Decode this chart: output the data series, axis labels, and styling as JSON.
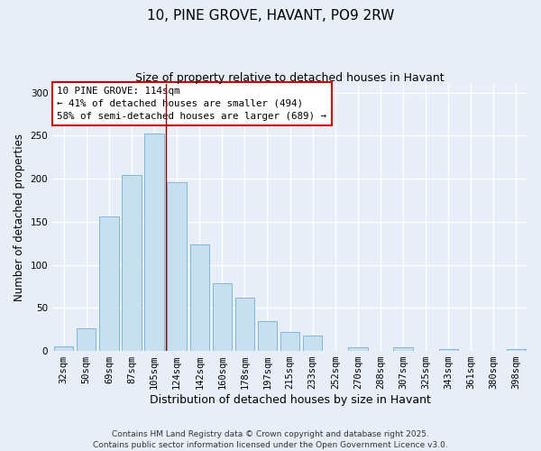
{
  "title": "10, PINE GROVE, HAVANT, PO9 2RW",
  "subtitle": "Size of property relative to detached houses in Havant",
  "xlabel": "Distribution of detached houses by size in Havant",
  "ylabel": "Number of detached properties",
  "bar_labels": [
    "32sqm",
    "50sqm",
    "69sqm",
    "87sqm",
    "105sqm",
    "124sqm",
    "142sqm",
    "160sqm",
    "178sqm",
    "197sqm",
    "215sqm",
    "233sqm",
    "252sqm",
    "270sqm",
    "288sqm",
    "307sqm",
    "325sqm",
    "343sqm",
    "361sqm",
    "380sqm",
    "398sqm"
  ],
  "bar_values": [
    5,
    26,
    156,
    204,
    252,
    196,
    124,
    79,
    62,
    35,
    22,
    18,
    0,
    4,
    0,
    4,
    0,
    2,
    0,
    0,
    2
  ],
  "bar_color": "#c8dff0",
  "bar_edge_color": "#7fb8d8",
  "vline_x": 4.5,
  "vline_color": "#8b0000",
  "annotation_text": "10 PINE GROVE: 114sqm\n← 41% of detached houses are smaller (494)\n58% of semi-detached houses are larger (689) →",
  "annotation_box_color": "#ffffff",
  "annotation_box_edge": "#cc0000",
  "ylim": [
    0,
    310
  ],
  "yticks": [
    0,
    50,
    100,
    150,
    200,
    250,
    300
  ],
  "footer_line1": "Contains HM Land Registry data © Crown copyright and database right 2025.",
  "footer_line2": "Contains public sector information licensed under the Open Government Licence v3.0.",
  "background_color": "#e8eef8",
  "grid_color": "#ffffff",
  "title_fontsize": 11,
  "subtitle_fontsize": 9,
  "axis_label_fontsize": 8.5,
  "tick_fontsize": 7.5,
  "annotation_fontsize": 7.8,
  "footer_fontsize": 6.5
}
